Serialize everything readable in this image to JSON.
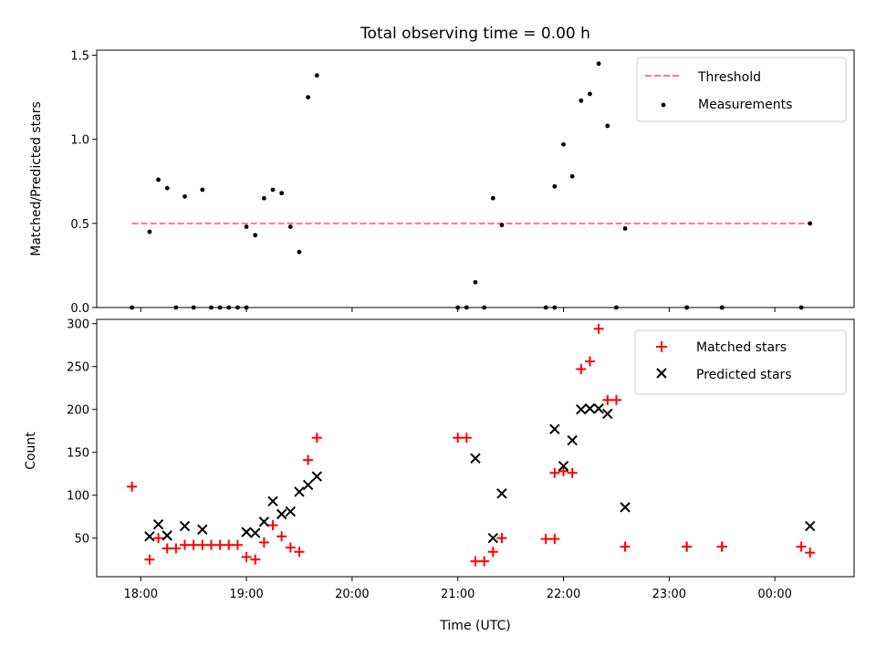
{
  "title": "Total observing time = 0.00 h",
  "chart_data": [
    {
      "type": "scatter",
      "ylabel": "Matched/Predicted stars",
      "ylim": [
        0,
        1.53
      ],
      "yticks": [
        0.0,
        0.5,
        1.0,
        1.5
      ],
      "ytick_labels": [
        "0.0",
        "0.5",
        "1.0",
        "1.5"
      ],
      "legend_position": "top-right",
      "threshold": {
        "name": "Threshold",
        "value": 0.5,
        "x_start": "17:55",
        "x_end": "00:20",
        "color": "#f08080"
      },
      "series": [
        {
          "name": "Measurements",
          "marker": "dot",
          "color": "#000000",
          "points": [
            [
              "17:55",
              0.0
            ],
            [
              "18:05",
              0.45
            ],
            [
              "18:10",
              0.76
            ],
            [
              "18:15",
              0.71
            ],
            [
              "18:20",
              0.0
            ],
            [
              "18:25",
              0.66
            ],
            [
              "18:30",
              0.0
            ],
            [
              "18:35",
              0.7
            ],
            [
              "18:40",
              0.0
            ],
            [
              "18:45",
              0.0
            ],
            [
              "18:50",
              0.0
            ],
            [
              "18:55",
              0.0
            ],
            [
              "19:00",
              0.0
            ],
            [
              "19:00",
              0.48
            ],
            [
              "19:05",
              0.43
            ],
            [
              "19:10",
              0.65
            ],
            [
              "19:15",
              0.7
            ],
            [
              "19:20",
              0.68
            ],
            [
              "19:25",
              0.48
            ],
            [
              "19:30",
              0.33
            ],
            [
              "19:35",
              1.25
            ],
            [
              "19:40",
              1.38
            ],
            [
              "21:00",
              0.0
            ],
            [
              "21:05",
              0.0
            ],
            [
              "21:10",
              0.15
            ],
            [
              "21:15",
              0.0
            ],
            [
              "21:20",
              0.65
            ],
            [
              "21:25",
              0.49
            ],
            [
              "21:50",
              0.0
            ],
            [
              "21:55",
              0.0
            ],
            [
              "21:55",
              0.72
            ],
            [
              "22:00",
              0.97
            ],
            [
              "22:05",
              0.78
            ],
            [
              "22:10",
              1.23
            ],
            [
              "22:15",
              1.27
            ],
            [
              "22:20",
              1.45
            ],
            [
              "22:25",
              1.08
            ],
            [
              "22:30",
              0.0
            ],
            [
              "22:35",
              0.47
            ],
            [
              "23:10",
              0.0
            ],
            [
              "23:10",
              0.0
            ],
            [
              "23:30",
              0.0
            ],
            [
              "23:30",
              0.0
            ],
            [
              "00:15",
              0.0
            ],
            [
              "00:20",
              0.5
            ]
          ]
        }
      ]
    },
    {
      "type": "scatter",
      "xlabel": "Time (UTC)",
      "ylabel": "Count",
      "ylim": [
        5,
        305
      ],
      "yticks": [
        50,
        100,
        150,
        200,
        250,
        300
      ],
      "ytick_labels": [
        "50",
        "100",
        "150",
        "200",
        "250",
        "300"
      ],
      "xlim": [
        "17:35",
        "00:45"
      ],
      "xticks": [
        "18:00",
        "19:00",
        "20:00",
        "21:00",
        "22:00",
        "23:00",
        "00:00"
      ],
      "legend_position": "top-right",
      "series": [
        {
          "name": "Matched stars",
          "marker": "plus",
          "color": "#ff0000",
          "points": [
            [
              "17:55",
              110
            ],
            [
              "18:05",
              25
            ],
            [
              "18:10",
              50
            ],
            [
              "18:15",
              38
            ],
            [
              "18:20",
              38
            ],
            [
              "18:25",
              42
            ],
            [
              "18:30",
              42
            ],
            [
              "18:35",
              42
            ],
            [
              "18:40",
              42
            ],
            [
              "18:45",
              42
            ],
            [
              "18:50",
              42
            ],
            [
              "18:55",
              42
            ],
            [
              "19:00",
              28
            ],
            [
              "19:05",
              25
            ],
            [
              "19:10",
              45
            ],
            [
              "19:15",
              65
            ],
            [
              "19:20",
              52
            ],
            [
              "19:25",
              39
            ],
            [
              "19:30",
              34
            ],
            [
              "19:35",
              141
            ],
            [
              "19:40",
              167
            ],
            [
              "21:00",
              167
            ],
            [
              "21:05",
              167
            ],
            [
              "21:10",
              23
            ],
            [
              "21:15",
              23
            ],
            [
              "21:20",
              34
            ],
            [
              "21:25",
              50
            ],
            [
              "21:50",
              49
            ],
            [
              "21:55",
              49
            ],
            [
              "21:55",
              126
            ],
            [
              "22:00",
              128
            ],
            [
              "22:05",
              126
            ],
            [
              "22:10",
              247
            ],
            [
              "22:15",
              256
            ],
            [
              "22:20",
              294
            ],
            [
              "22:25",
              211
            ],
            [
              "22:30",
              211
            ],
            [
              "22:35",
              40
            ],
            [
              "23:10",
              40
            ],
            [
              "23:10",
              40
            ],
            [
              "23:30",
              40
            ],
            [
              "23:30",
              40
            ],
            [
              "00:15",
              40
            ],
            [
              "00:20",
              33
            ]
          ]
        },
        {
          "name": "Predicted stars",
          "marker": "x",
          "color": "#000000",
          "points": [
            [
              "18:05",
              52
            ],
            [
              "18:10",
              66
            ],
            [
              "18:15",
              53
            ],
            [
              "18:25",
              64
            ],
            [
              "18:35",
              60
            ],
            [
              "19:00",
              57
            ],
            [
              "19:05",
              56
            ],
            [
              "19:10",
              69
            ],
            [
              "19:15",
              93
            ],
            [
              "19:20",
              78
            ],
            [
              "19:25",
              81
            ],
            [
              "19:30",
              104
            ],
            [
              "19:35",
              112
            ],
            [
              "19:40",
              122
            ],
            [
              "21:10",
              143
            ],
            [
              "21:20",
              50
            ],
            [
              "21:25",
              102
            ],
            [
              "21:55",
              177
            ],
            [
              "22:00",
              134
            ],
            [
              "22:05",
              164
            ],
            [
              "22:10",
              200
            ],
            [
              "22:15",
              201
            ],
            [
              "22:20",
              201
            ],
            [
              "22:25",
              195
            ],
            [
              "22:35",
              86
            ],
            [
              "00:20",
              64
            ]
          ]
        }
      ]
    }
  ]
}
